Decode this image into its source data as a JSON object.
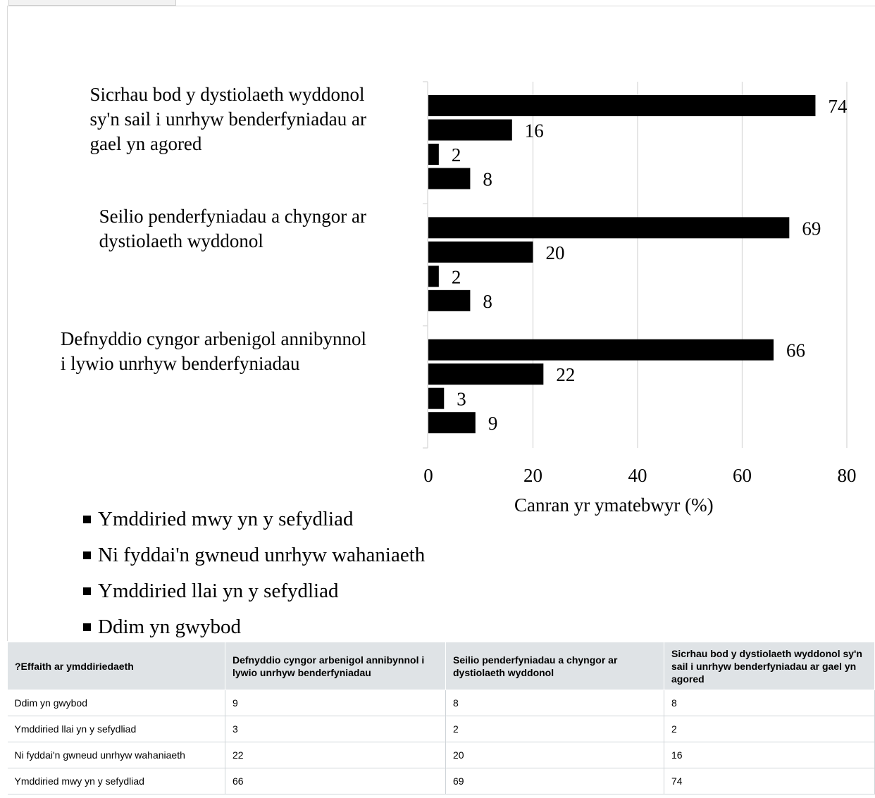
{
  "chart_data": {
    "type": "bar",
    "orientation": "horizontal",
    "categories": [
      "Sicrhau bod y dystiolaeth wyddonol sy'n sail i unrhyw benderfyniadau ar gael yn agored",
      "Seilio penderfyniadau a chyngor ar dystiolaeth wyddonol",
      "Defnyddio cyngor arbenigol annibynnol i lywio unrhyw benderfyniadau"
    ],
    "category_lines": [
      [
        "Sicrhau bod y dystiolaeth wyddonol",
        "sy'n sail i unrhyw benderfyniadau ar",
        "gael yn agored"
      ],
      [
        "Seilio penderfyniadau a chyngor ar",
        "dystiolaeth wyddonol"
      ],
      [
        "Defnyddio cyngor arbenigol annibynnol",
        "i lywio unrhyw benderfyniadau"
      ]
    ],
    "series": [
      {
        "name": "Ymddiried mwy yn y sefydliad",
        "values": [
          74,
          69,
          66
        ]
      },
      {
        "name": "Ni fyddai'n gwneud unrhyw wahaniaeth",
        "values": [
          16,
          20,
          22
        ]
      },
      {
        "name": "Ymddiried llai yn y sefydliad",
        "values": [
          2,
          2,
          3
        ]
      },
      {
        "name": "Ddim yn gwybod",
        "values": [
          8,
          8,
          9
        ]
      }
    ],
    "xlabel": "Canran yr ymatebwyr (%)",
    "xlim": [
      0,
      80
    ],
    "xticks": [
      "0",
      "20",
      "40",
      "60",
      "80"
    ],
    "bar_color": "#000000",
    "grid": true,
    "legend_position": "bottom-left"
  },
  "table": {
    "headers": [
      "?Effaith ar ymddiriedaeth",
      "Defnyddio cyngor arbenigol annibynnol i lywio unrhyw benderfyniadau",
      "Seilio penderfyniadau a chyngor ar dystiolaeth wyddonol",
      "Sicrhau bod y dystiolaeth wyddonol sy'n sail i unrhyw benderfyniadau ar gael yn agored"
    ],
    "rows": [
      [
        "Ddim yn gwybod",
        "9",
        "8",
        "8"
      ],
      [
        "Ymddiried llai yn y sefydliad",
        "3",
        "2",
        "2"
      ],
      [
        "Ni fyddai'n gwneud unrhyw wahaniaeth",
        "22",
        "20",
        "16"
      ],
      [
        "Ymddiried mwy yn y sefydliad",
        "66",
        "69",
        "74"
      ]
    ]
  },
  "colors": {
    "header_bg": "#dfe3e6",
    "grid": "#d9d9d9",
    "bar": "#000000"
  }
}
